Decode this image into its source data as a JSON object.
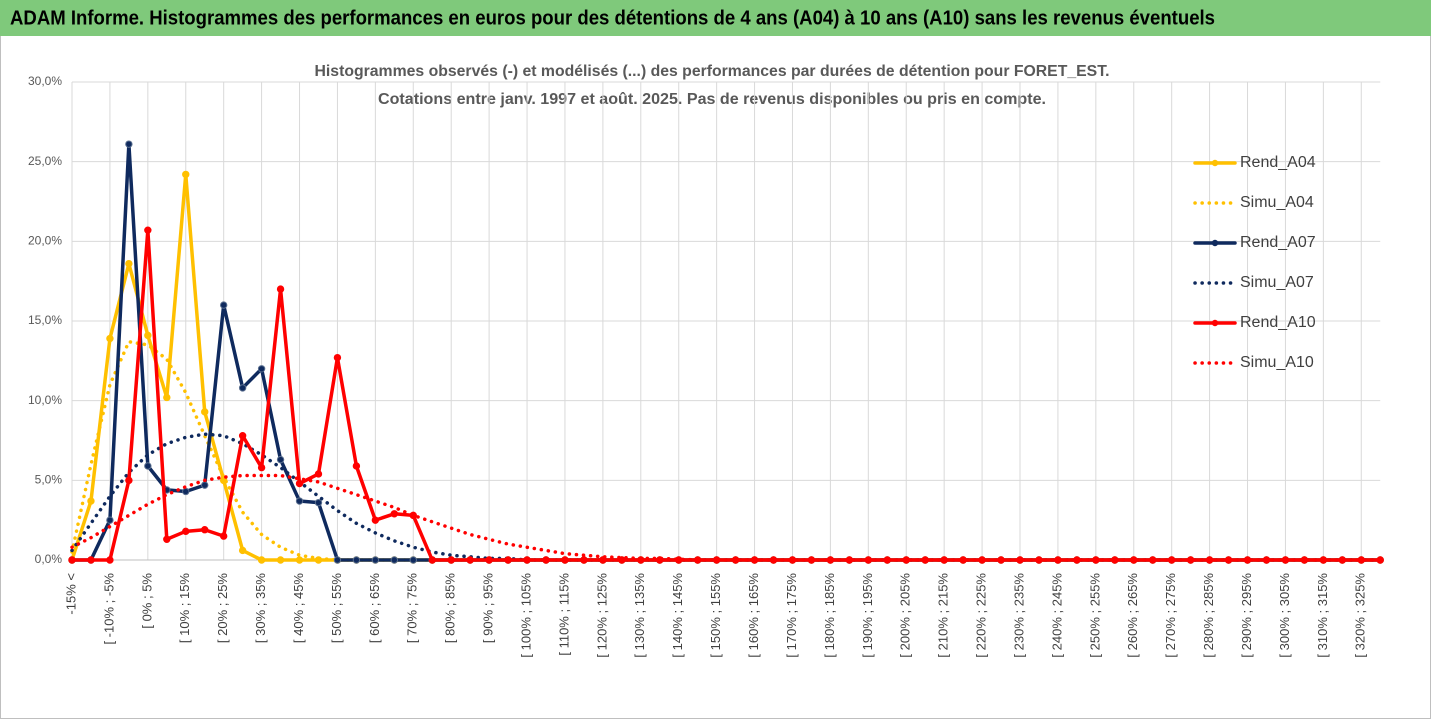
{
  "header": {
    "title": "ADAM Informe. Histogrammes des performances en euros pour des détentions de 4 ans (A04) à 10 ans (A10) sans les revenus éventuels"
  },
  "chart_data": {
    "type": "line",
    "title": "Histogrammes observés (-) et modélisés (...) des performances par durées de détention pour FORET_EST.",
    "subtitle": "Cotations entre janv. 1997 et août. 2025. Pas de revenus disponibles ou pris en compte.",
    "categories": [
      "-15% <",
      null,
      "[ -10% ; -5%",
      null,
      "[ 0% ; 5%",
      null,
      "[ 10% ; 15%",
      null,
      "[ 20% ; 25%",
      null,
      "[ 30% ; 35%",
      null,
      "[ 40% ; 45%",
      null,
      "[ 50% ; 55%",
      null,
      "[ 60% ; 65%",
      null,
      "[ 70% ; 75%",
      null,
      "[ 80% ; 85%",
      null,
      "[ 90% ; 95%",
      null,
      "[ 100% ; 105%",
      null,
      "[ 110% ; 115%",
      null,
      "[ 120% ; 125%",
      null,
      "[ 130% ; 135%",
      null,
      "[ 140% ; 145%",
      null,
      "[ 150% ; 155%",
      null,
      "[ 160% ; 165%",
      null,
      "[ 170% ; 175%",
      null,
      "[ 180% ; 185%",
      null,
      "[ 190% ; 195%",
      null,
      "[ 200% ; 205%",
      null,
      "[ 210% ; 215%",
      null,
      "[ 220% ; 225%",
      null,
      "[ 230% ; 235%",
      null,
      "[ 240% ; 245%",
      null,
      "[ 250% ; 255%",
      null,
      "[ 260% ; 265%",
      null,
      "[ 270% ; 275%",
      null,
      "[ 280% ; 285%",
      null,
      "[ 290% ; 295%",
      null,
      "[ 300% ; 305%",
      null,
      "[ 310% ; 315%",
      null,
      "[ 320% ; 325%",
      null
    ],
    "series": [
      {
        "name": "Rend_A04",
        "color": "#ffc000",
        "style": "solid",
        "markers": true,
        "values": [
          0,
          3.7,
          13.9,
          18.6,
          14.1,
          10.2,
          24.2,
          9.3,
          5.0,
          0.6,
          0,
          0,
          0,
          0,
          0,
          0,
          0,
          0,
          0,
          0,
          0,
          0,
          0,
          0,
          0,
          0,
          0,
          0,
          0,
          0,
          0,
          0,
          0,
          0,
          0,
          0,
          0,
          0,
          0,
          0,
          0,
          0,
          0,
          0,
          0,
          0,
          0,
          0,
          0,
          0,
          0,
          0,
          0,
          0,
          0,
          0,
          0,
          0,
          0,
          0,
          0,
          0,
          0,
          0,
          0,
          0,
          0,
          0,
          0,
          0
        ]
      },
      {
        "name": "Simu_A04",
        "color": "#ffc000",
        "style": "dotted",
        "markers": false,
        "values": [
          0.5,
          6,
          11,
          13.7,
          13.5,
          12.6,
          10.5,
          7.8,
          5.2,
          3.0,
          1.6,
          0.8,
          0.3,
          0.1,
          0,
          0,
          0,
          0,
          0,
          0,
          0,
          0,
          0,
          0,
          0,
          0,
          0,
          0,
          0,
          0,
          0,
          0,
          0,
          0,
          0,
          0,
          0,
          0,
          0,
          0,
          0,
          0,
          0,
          0,
          0,
          0,
          0,
          0,
          0,
          0,
          0,
          0,
          0,
          0,
          0,
          0,
          0,
          0,
          0,
          0,
          0,
          0,
          0,
          0,
          0,
          0,
          0,
          0,
          0,
          0
        ]
      },
      {
        "name": "Rend_A07",
        "color": "#0f2a5e",
        "style": "solid",
        "markers": true,
        "values": [
          0,
          0,
          2.5,
          26.1,
          5.9,
          4.4,
          4.3,
          4.7,
          16.0,
          10.8,
          12.0,
          6.3,
          3.7,
          3.6,
          0,
          0,
          0,
          0,
          0,
          0,
          0,
          0,
          0,
          0,
          0,
          0,
          0,
          0,
          0,
          0,
          0,
          0,
          0,
          0,
          0,
          0,
          0,
          0,
          0,
          0,
          0,
          0,
          0,
          0,
          0,
          0,
          0,
          0,
          0,
          0,
          0,
          0,
          0,
          0,
          0,
          0,
          0,
          0,
          0,
          0,
          0,
          0,
          0,
          0,
          0,
          0,
          0,
          0,
          0,
          0
        ]
      },
      {
        "name": "Simu_A07",
        "color": "#0f2a5e",
        "style": "dotted",
        "markers": false,
        "values": [
          0.6,
          2.3,
          4.0,
          5.5,
          6.6,
          7.3,
          7.7,
          7.9,
          7.8,
          7.3,
          6.6,
          5.8,
          4.9,
          4.0,
          3.1,
          2.3,
          1.7,
          1.2,
          0.8,
          0.5,
          0.3,
          0.2,
          0.1,
          0.1,
          0,
          0,
          0,
          0,
          0,
          0,
          0,
          0,
          0,
          0,
          0,
          0,
          0,
          0,
          0,
          0,
          0,
          0,
          0,
          0,
          0,
          0,
          0,
          0,
          0,
          0,
          0,
          0,
          0,
          0,
          0,
          0,
          0,
          0,
          0,
          0,
          0,
          0,
          0,
          0,
          0,
          0,
          0,
          0,
          0,
          0
        ]
      },
      {
        "name": "Rend_A10",
        "color": "#ff0000",
        "style": "solid",
        "markers": true,
        "values": [
          0,
          0,
          0,
          5.0,
          20.7,
          1.3,
          1.8,
          1.9,
          1.5,
          7.8,
          5.8,
          17.0,
          4.8,
          5.4,
          12.7,
          5.9,
          2.5,
          2.9,
          2.8,
          0,
          0,
          0,
          0,
          0,
          0,
          0,
          0,
          0,
          0,
          0,
          0,
          0,
          0,
          0,
          0,
          0,
          0,
          0,
          0,
          0,
          0,
          0,
          0,
          0,
          0,
          0,
          0,
          0,
          0,
          0,
          0,
          0,
          0,
          0,
          0,
          0,
          0,
          0,
          0,
          0,
          0,
          0,
          0,
          0,
          0,
          0,
          0,
          0,
          0,
          0
        ]
      },
      {
        "name": "Simu_A10",
        "color": "#ff0000",
        "style": "dotted",
        "markers": false,
        "values": [
          0.8,
          1.4,
          2.1,
          2.8,
          3.5,
          4.1,
          4.6,
          5.0,
          5.2,
          5.3,
          5.3,
          5.3,
          5.1,
          4.9,
          4.5,
          4.1,
          3.7,
          3.3,
          2.8,
          2.4,
          2.0,
          1.6,
          1.3,
          1.0,
          0.8,
          0.6,
          0.4,
          0.3,
          0.2,
          0.15,
          0.1,
          0.1,
          0.05,
          0,
          0,
          0,
          0,
          0,
          0,
          0,
          0,
          0,
          0,
          0,
          0,
          0,
          0,
          0,
          0,
          0,
          0,
          0,
          0,
          0,
          0,
          0,
          0,
          0,
          0,
          0,
          0,
          0,
          0,
          0,
          0,
          0,
          0,
          0,
          0,
          0
        ]
      }
    ],
    "ylim": [
      0,
      30
    ],
    "yticks": [
      {
        "value": 0,
        "label": "0,0%"
      },
      {
        "value": 5,
        "label": "5,0%"
      },
      {
        "value": 10,
        "label": "10,0%"
      },
      {
        "value": 15,
        "label": "15,0%"
      },
      {
        "value": 20,
        "label": "20,0%"
      },
      {
        "value": 25,
        "label": "25,0%"
      },
      {
        "value": 30,
        "label": "30,0%"
      }
    ],
    "grid": true,
    "legend": "right"
  }
}
